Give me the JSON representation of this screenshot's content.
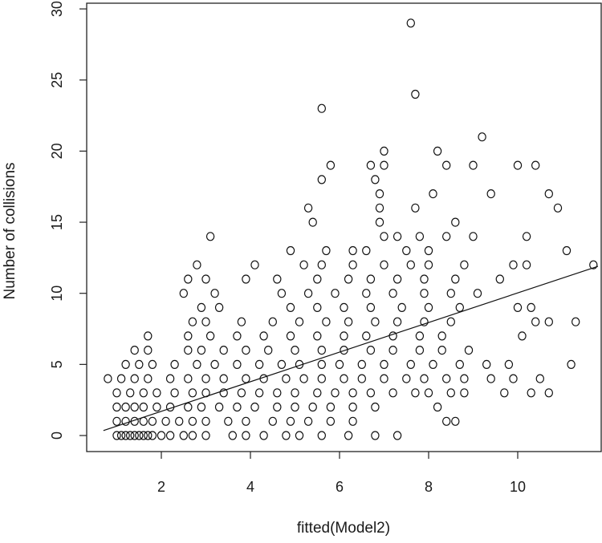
{
  "chart_data": {
    "type": "scatter",
    "title": "",
    "xlabel": "fitted(Model2)",
    "ylabel": "Number of collisions",
    "xlim": [
      0.85,
      11.8
    ],
    "ylim": [
      -1.2,
      30
    ],
    "x_ticks": [
      2,
      4,
      6,
      8,
      10
    ],
    "y_ticks": [
      0,
      5,
      10,
      15,
      20,
      25,
      30
    ],
    "grid": false,
    "legend": "none",
    "marker": "open-circle",
    "regression_line": {
      "from": [
        0.7,
        0.35
      ],
      "to": [
        11.8,
        11.9
      ]
    },
    "points": [
      [
        1.0,
        0
      ],
      [
        1.1,
        0
      ],
      [
        1.2,
        0
      ],
      [
        1.3,
        0
      ],
      [
        1.4,
        0
      ],
      [
        1.5,
        0
      ],
      [
        1.6,
        0
      ],
      [
        1.7,
        0
      ],
      [
        1.8,
        0
      ],
      [
        2.0,
        0
      ],
      [
        2.2,
        0
      ],
      [
        2.5,
        0
      ],
      [
        2.7,
        0
      ],
      [
        3.0,
        0
      ],
      [
        3.6,
        0
      ],
      [
        3.9,
        0
      ],
      [
        4.3,
        0
      ],
      [
        4.8,
        0
      ],
      [
        5.1,
        0
      ],
      [
        5.6,
        0
      ],
      [
        6.2,
        0
      ],
      [
        6.8,
        0
      ],
      [
        7.3,
        0
      ],
      [
        1.0,
        1
      ],
      [
        1.2,
        1
      ],
      [
        1.4,
        1
      ],
      [
        1.6,
        1
      ],
      [
        1.8,
        1
      ],
      [
        2.1,
        1
      ],
      [
        2.4,
        1
      ],
      [
        2.7,
        1
      ],
      [
        3.0,
        1
      ],
      [
        3.5,
        1
      ],
      [
        3.9,
        1
      ],
      [
        4.5,
        1
      ],
      [
        4.9,
        1
      ],
      [
        5.3,
        1
      ],
      [
        5.8,
        1
      ],
      [
        6.3,
        1
      ],
      [
        8.4,
        1
      ],
      [
        8.6,
        1
      ],
      [
        1.0,
        2
      ],
      [
        1.2,
        2
      ],
      [
        1.4,
        2
      ],
      [
        1.6,
        2
      ],
      [
        1.9,
        2
      ],
      [
        2.2,
        2
      ],
      [
        2.6,
        2
      ],
      [
        2.9,
        2
      ],
      [
        3.3,
        2
      ],
      [
        3.7,
        2
      ],
      [
        4.1,
        2
      ],
      [
        4.6,
        2
      ],
      [
        5.0,
        2
      ],
      [
        5.4,
        2
      ],
      [
        5.8,
        2
      ],
      [
        6.3,
        2
      ],
      [
        6.8,
        2
      ],
      [
        8.2,
        2
      ],
      [
        1.0,
        3
      ],
      [
        1.3,
        3
      ],
      [
        1.6,
        3
      ],
      [
        1.9,
        3
      ],
      [
        2.3,
        3
      ],
      [
        2.7,
        3
      ],
      [
        3.0,
        3
      ],
      [
        3.4,
        3
      ],
      [
        3.8,
        3
      ],
      [
        4.2,
        3
      ],
      [
        4.6,
        3
      ],
      [
        5.0,
        3
      ],
      [
        5.5,
        3
      ],
      [
        5.9,
        3
      ],
      [
        6.3,
        3
      ],
      [
        6.7,
        3
      ],
      [
        7.2,
        3
      ],
      [
        7.7,
        3
      ],
      [
        8.0,
        3
      ],
      [
        8.5,
        3
      ],
      [
        8.8,
        3
      ],
      [
        9.7,
        3
      ],
      [
        10.3,
        3
      ],
      [
        10.7,
        3
      ],
      [
        0.8,
        4
      ],
      [
        1.1,
        4
      ],
      [
        1.4,
        4
      ],
      [
        1.7,
        4
      ],
      [
        2.2,
        4
      ],
      [
        2.6,
        4
      ],
      [
        3.0,
        4
      ],
      [
        3.4,
        4
      ],
      [
        3.9,
        4
      ],
      [
        4.3,
        4
      ],
      [
        4.8,
        4
      ],
      [
        5.2,
        4
      ],
      [
        5.6,
        4
      ],
      [
        6.1,
        4
      ],
      [
        6.5,
        4
      ],
      [
        7.0,
        4
      ],
      [
        7.5,
        4
      ],
      [
        7.9,
        4
      ],
      [
        8.4,
        4
      ],
      [
        8.8,
        4
      ],
      [
        9.4,
        4
      ],
      [
        9.9,
        4
      ],
      [
        10.5,
        4
      ],
      [
        1.2,
        5
      ],
      [
        1.5,
        5
      ],
      [
        1.8,
        5
      ],
      [
        2.3,
        5
      ],
      [
        2.8,
        5
      ],
      [
        3.2,
        5
      ],
      [
        3.7,
        5
      ],
      [
        4.2,
        5
      ],
      [
        4.7,
        5
      ],
      [
        5.1,
        5
      ],
      [
        5.6,
        5
      ],
      [
        6.0,
        5
      ],
      [
        6.5,
        5
      ],
      [
        7.0,
        5
      ],
      [
        7.6,
        5
      ],
      [
        8.1,
        5
      ],
      [
        8.7,
        5
      ],
      [
        9.3,
        5
      ],
      [
        9.8,
        5
      ],
      [
        11.2,
        5
      ],
      [
        1.4,
        6
      ],
      [
        1.7,
        6
      ],
      [
        2.6,
        6
      ],
      [
        2.9,
        6
      ],
      [
        3.4,
        6
      ],
      [
        3.9,
        6
      ],
      [
        4.4,
        6
      ],
      [
        5.0,
        6
      ],
      [
        5.6,
        6
      ],
      [
        6.1,
        6
      ],
      [
        6.7,
        6
      ],
      [
        7.2,
        6
      ],
      [
        7.8,
        6
      ],
      [
        8.3,
        6
      ],
      [
        8.9,
        6
      ],
      [
        1.7,
        7
      ],
      [
        2.6,
        7
      ],
      [
        3.1,
        7
      ],
      [
        3.7,
        7
      ],
      [
        4.3,
        7
      ],
      [
        4.9,
        7
      ],
      [
        5.5,
        7
      ],
      [
        6.1,
        7
      ],
      [
        6.6,
        7
      ],
      [
        7.2,
        7
      ],
      [
        7.8,
        7
      ],
      [
        8.3,
        7
      ],
      [
        10.1,
        7
      ],
      [
        2.7,
        8
      ],
      [
        3.0,
        8
      ],
      [
        3.8,
        8
      ],
      [
        4.5,
        8
      ],
      [
        5.1,
        8
      ],
      [
        5.7,
        8
      ],
      [
        6.2,
        8
      ],
      [
        6.8,
        8
      ],
      [
        7.3,
        8
      ],
      [
        7.9,
        8
      ],
      [
        8.5,
        8
      ],
      [
        10.4,
        8
      ],
      [
        10.7,
        8
      ],
      [
        11.3,
        8
      ],
      [
        2.9,
        9
      ],
      [
        3.3,
        9
      ],
      [
        4.9,
        9
      ],
      [
        5.5,
        9
      ],
      [
        6.1,
        9
      ],
      [
        6.7,
        9
      ],
      [
        7.4,
        9
      ],
      [
        8.0,
        9
      ],
      [
        8.7,
        9
      ],
      [
        10.0,
        9
      ],
      [
        10.3,
        9
      ],
      [
        2.5,
        10
      ],
      [
        3.2,
        10
      ],
      [
        4.7,
        10
      ],
      [
        5.3,
        10
      ],
      [
        5.9,
        10
      ],
      [
        6.6,
        10
      ],
      [
        7.2,
        10
      ],
      [
        7.9,
        10
      ],
      [
        8.5,
        10
      ],
      [
        9.1,
        10
      ],
      [
        2.6,
        11
      ],
      [
        3.0,
        11
      ],
      [
        3.9,
        11
      ],
      [
        4.6,
        11
      ],
      [
        5.5,
        11
      ],
      [
        6.2,
        11
      ],
      [
        6.7,
        11
      ],
      [
        7.3,
        11
      ],
      [
        7.9,
        11
      ],
      [
        8.6,
        11
      ],
      [
        9.6,
        11
      ],
      [
        2.8,
        12
      ],
      [
        4.1,
        12
      ],
      [
        5.2,
        12
      ],
      [
        5.6,
        12
      ],
      [
        6.3,
        12
      ],
      [
        7.0,
        12
      ],
      [
        7.6,
        12
      ],
      [
        8.0,
        12
      ],
      [
        8.8,
        12
      ],
      [
        9.9,
        12
      ],
      [
        10.2,
        12
      ],
      [
        11.7,
        12
      ],
      [
        3.1,
        14
      ],
      [
        7.0,
        14
      ],
      [
        7.3,
        14
      ],
      [
        7.8,
        14
      ],
      [
        8.4,
        14
      ],
      [
        9.0,
        14
      ],
      [
        10.2,
        14
      ],
      [
        4.9,
        13
      ],
      [
        5.7,
        13
      ],
      [
        6.3,
        13
      ],
      [
        6.6,
        13
      ],
      [
        7.5,
        13
      ],
      [
        8.0,
        13
      ],
      [
        11.1,
        13
      ],
      [
        5.4,
        15
      ],
      [
        6.9,
        15
      ],
      [
        8.6,
        15
      ],
      [
        5.3,
        16
      ],
      [
        6.9,
        16
      ],
      [
        7.7,
        16
      ],
      [
        10.9,
        16
      ],
      [
        6.9,
        17
      ],
      [
        8.1,
        17
      ],
      [
        9.4,
        17
      ],
      [
        10.7,
        17
      ],
      [
        5.6,
        18
      ],
      [
        6.8,
        18
      ],
      [
        5.8,
        19
      ],
      [
        6.7,
        19
      ],
      [
        7.0,
        19
      ],
      [
        8.4,
        19
      ],
      [
        9.0,
        19
      ],
      [
        10.0,
        19
      ],
      [
        10.4,
        19
      ],
      [
        7.0,
        20
      ],
      [
        8.2,
        20
      ],
      [
        9.2,
        21
      ],
      [
        5.6,
        23
      ],
      [
        7.7,
        24
      ],
      [
        7.6,
        29
      ]
    ]
  }
}
